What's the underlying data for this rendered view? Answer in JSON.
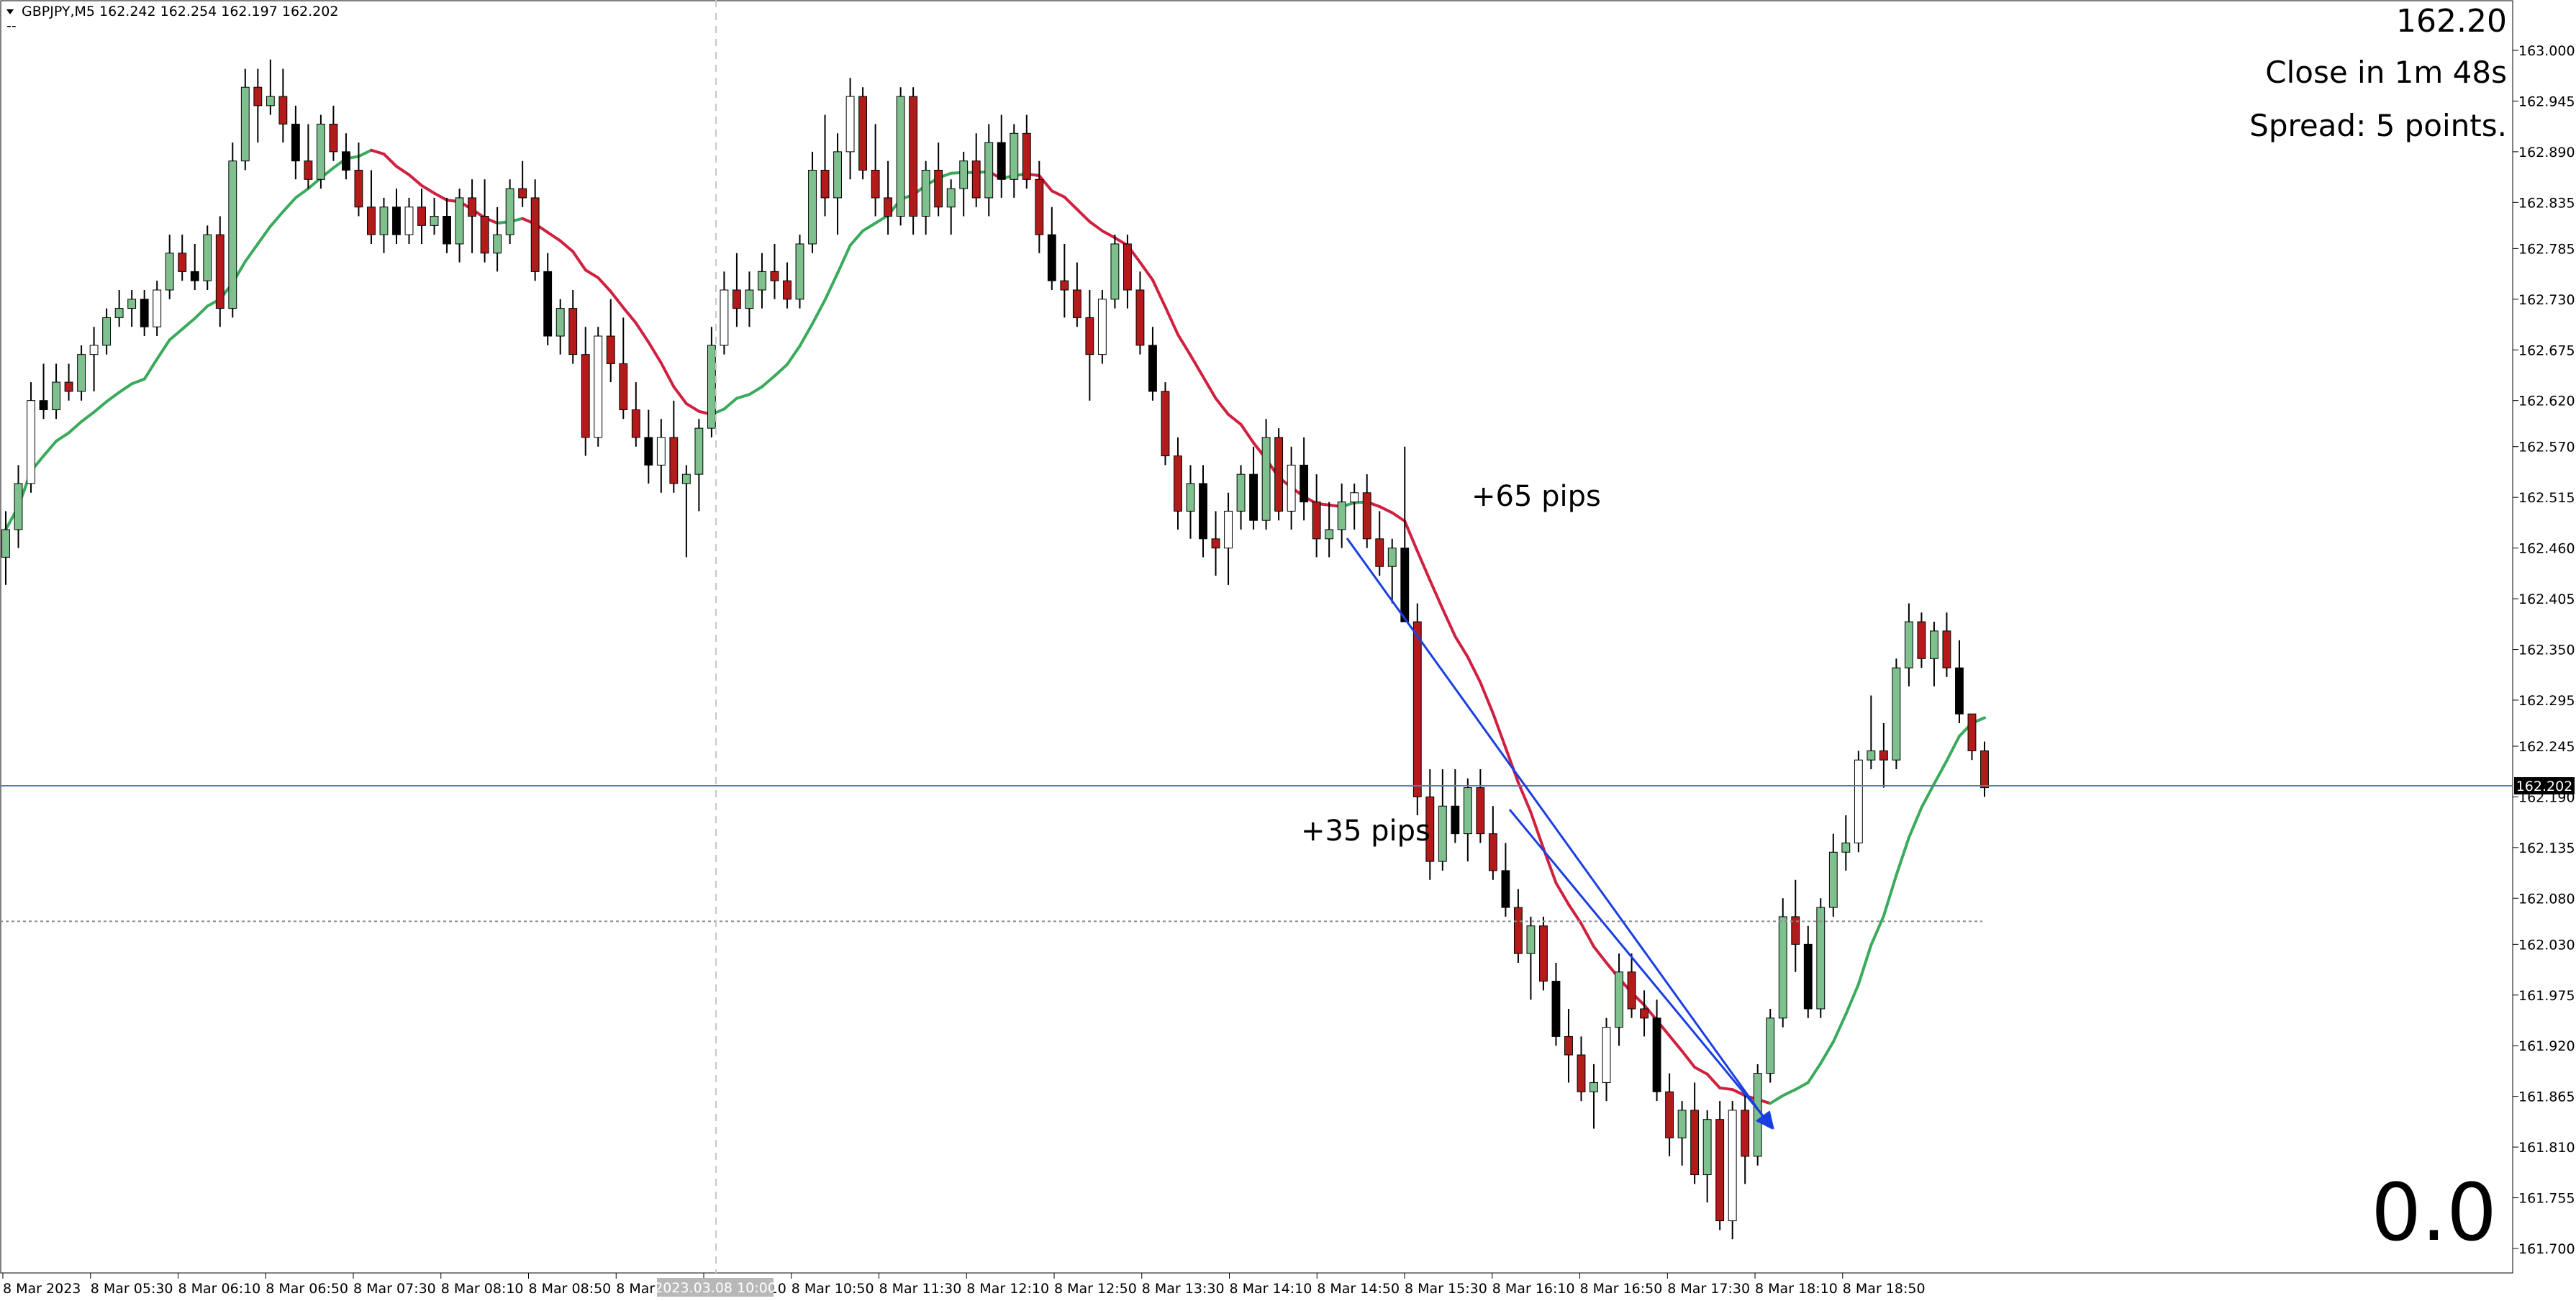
{
  "header": {
    "symbol_line": "GBPJPY,M5  162.242 162.254 162.197 162.202",
    "dashes": "--"
  },
  "overlay": {
    "price": "162.20",
    "close_in": "Close in 1m 48s",
    "spread": "Spread: 5 points.",
    "counter": "0.0",
    "counter_color": "#3cc23c"
  },
  "annotations": {
    "pips_65": "+65 pips",
    "pips_35": "+35 pips"
  },
  "current_price_label": "162.202",
  "cursor_time_label": "2023.03.08 10:00",
  "colors": {
    "bull_body": "#7fc08f",
    "bear_body": "#b31b1b",
    "neutral_body": "#000000",
    "wick": "#000000",
    "ma_up": "#3aaa5c",
    "ma_down": "#d0203f",
    "ma_turn": "#f7e64a",
    "arrow": "#1a3fe0",
    "bid_line": "#5a7ea0",
    "dotted_line": "#8a8a8a",
    "cursor_line": "#c8c8c8"
  },
  "chart_data": {
    "type": "candlestick",
    "symbol": "GBPJPY",
    "timeframe": "M5",
    "ylim": [
      161.675,
      163.02
    ],
    "y_ticks": [
      "163.000",
      "162.945",
      "162.890",
      "162.835",
      "162.785",
      "162.730",
      "162.675",
      "162.620",
      "162.570",
      "162.515",
      "162.460",
      "162.405",
      "162.350",
      "162.295",
      "162.245",
      "162.190",
      "162.135",
      "162.080",
      "162.030",
      "161.975",
      "161.920",
      "161.865",
      "161.810",
      "161.755",
      "161.700"
    ],
    "x_ticks": [
      "8 Mar 2023",
      "8 Mar 05:30",
      "8 Mar 06:10",
      "8 Mar 06:50",
      "8 Mar 07:30",
      "8 Mar 08:10",
      "8 Mar 08:50",
      "8 Mar 09:30",
      "8 Mar 10:10",
      "8 Mar 10:50",
      "8 Mar 11:30",
      "8 Mar 12:10",
      "8 Mar 12:50",
      "8 Mar 13:30",
      "8 Mar 14:10",
      "8 Mar 14:50",
      "8 Mar 15:30",
      "8 Mar 16:10",
      "8 Mar 16:50",
      "8 Mar 17:30",
      "8 Mar 18:10",
      "8 Mar 18:50"
    ],
    "current_price": 162.202,
    "dotted_level": 162.055,
    "candles_ohlc": [
      [
        162.45,
        162.5,
        162.42,
        162.48
      ],
      [
        162.48,
        162.55,
        162.46,
        162.53
      ],
      [
        162.53,
        162.64,
        162.52,
        162.62
      ],
      [
        162.62,
        162.66,
        162.6,
        162.61
      ],
      [
        162.61,
        162.66,
        162.6,
        162.64
      ],
      [
        162.64,
        162.66,
        162.62,
        162.63
      ],
      [
        162.63,
        162.68,
        162.62,
        162.67
      ],
      [
        162.67,
        162.7,
        162.63,
        162.68
      ],
      [
        162.68,
        162.72,
        162.67,
        162.71
      ],
      [
        162.71,
        162.74,
        162.7,
        162.72
      ],
      [
        162.72,
        162.74,
        162.7,
        162.73
      ],
      [
        162.73,
        162.74,
        162.69,
        162.7
      ],
      [
        162.7,
        162.75,
        162.69,
        162.74
      ],
      [
        162.74,
        162.8,
        162.73,
        162.78
      ],
      [
        162.78,
        162.8,
        162.75,
        162.76
      ],
      [
        162.76,
        162.79,
        162.74,
        162.75
      ],
      [
        162.75,
        162.81,
        162.74,
        162.8
      ],
      [
        162.8,
        162.82,
        162.7,
        162.72
      ],
      [
        162.72,
        162.9,
        162.71,
        162.88
      ],
      [
        162.88,
        162.98,
        162.87,
        162.96
      ],
      [
        162.96,
        162.98,
        162.9,
        162.94
      ],
      [
        162.94,
        162.99,
        162.93,
        162.95
      ],
      [
        162.95,
        162.98,
        162.9,
        162.92
      ],
      [
        162.92,
        162.94,
        162.86,
        162.88
      ],
      [
        162.88,
        162.92,
        162.85,
        162.86
      ],
      [
        162.86,
        162.93,
        162.85,
        162.92
      ],
      [
        162.92,
        162.94,
        162.88,
        162.89
      ],
      [
        162.89,
        162.91,
        162.86,
        162.87
      ],
      [
        162.87,
        162.9,
        162.82,
        162.83
      ],
      [
        162.83,
        162.87,
        162.79,
        162.8
      ],
      [
        162.8,
        162.84,
        162.78,
        162.83
      ],
      [
        162.83,
        162.85,
        162.79,
        162.8
      ],
      [
        162.8,
        162.84,
        162.79,
        162.83
      ],
      [
        162.83,
        162.85,
        162.79,
        162.81
      ],
      [
        162.81,
        162.84,
        162.8,
        162.82
      ],
      [
        162.82,
        162.84,
        162.78,
        162.79
      ],
      [
        162.79,
        162.85,
        162.77,
        162.84
      ],
      [
        162.84,
        162.86,
        162.78,
        162.82
      ],
      [
        162.82,
        162.86,
        162.77,
        162.78
      ],
      [
        162.78,
        162.83,
        162.76,
        162.8
      ],
      [
        162.8,
        162.86,
        162.79,
        162.85
      ],
      [
        162.85,
        162.88,
        162.83,
        162.84
      ],
      [
        162.84,
        162.86,
        162.75,
        162.76
      ],
      [
        162.76,
        162.78,
        162.68,
        162.69
      ],
      [
        162.69,
        162.73,
        162.67,
        162.72
      ],
      [
        162.72,
        162.74,
        162.66,
        162.67
      ],
      [
        162.67,
        162.7,
        162.56,
        162.58
      ],
      [
        162.58,
        162.7,
        162.57,
        162.69
      ],
      [
        162.69,
        162.73,
        162.64,
        162.66
      ],
      [
        162.66,
        162.71,
        162.6,
        162.61
      ],
      [
        162.61,
        162.64,
        162.57,
        162.58
      ],
      [
        162.58,
        162.61,
        162.53,
        162.55
      ],
      [
        162.55,
        162.6,
        162.52,
        162.58
      ],
      [
        162.58,
        162.62,
        162.52,
        162.53
      ],
      [
        162.53,
        162.55,
        162.45,
        162.54
      ],
      [
        162.54,
        162.6,
        162.5,
        162.59
      ],
      [
        162.59,
        162.7,
        162.58,
        162.68
      ],
      [
        162.68,
        162.76,
        162.67,
        162.74
      ],
      [
        162.74,
        162.78,
        162.7,
        162.72
      ],
      [
        162.72,
        162.76,
        162.7,
        162.74
      ],
      [
        162.74,
        162.78,
        162.72,
        162.76
      ],
      [
        162.76,
        162.79,
        162.73,
        162.75
      ],
      [
        162.75,
        162.77,
        162.72,
        162.73
      ],
      [
        162.73,
        162.8,
        162.72,
        162.79
      ],
      [
        162.79,
        162.89,
        162.78,
        162.87
      ],
      [
        162.87,
        162.93,
        162.82,
        162.84
      ],
      [
        162.84,
        162.91,
        162.8,
        162.89
      ],
      [
        162.89,
        162.97,
        162.86,
        162.95
      ],
      [
        162.95,
        162.96,
        162.86,
        162.87
      ],
      [
        162.87,
        162.92,
        162.82,
        162.84
      ],
      [
        162.84,
        162.88,
        162.8,
        162.82
      ],
      [
        162.82,
        162.96,
        162.81,
        162.95
      ],
      [
        162.95,
        162.96,
        162.8,
        162.82
      ],
      [
        162.82,
        162.88,
        162.8,
        162.87
      ],
      [
        162.87,
        162.9,
        162.82,
        162.83
      ],
      [
        162.83,
        162.86,
        162.8,
        162.85
      ],
      [
        162.85,
        162.89,
        162.82,
        162.88
      ],
      [
        162.88,
        162.91,
        162.83,
        162.84
      ],
      [
        162.84,
        162.92,
        162.82,
        162.9
      ],
      [
        162.9,
        162.93,
        162.84,
        162.86
      ],
      [
        162.86,
        162.92,
        162.84,
        162.91
      ],
      [
        162.91,
        162.93,
        162.85,
        162.86
      ],
      [
        162.86,
        162.88,
        162.78,
        162.8
      ],
      [
        162.8,
        162.83,
        162.74,
        162.75
      ],
      [
        162.75,
        162.79,
        162.71,
        162.74
      ],
      [
        162.74,
        162.77,
        162.7,
        162.71
      ],
      [
        162.71,
        162.74,
        162.62,
        162.67
      ],
      [
        162.67,
        162.74,
        162.66,
        162.73
      ],
      [
        162.73,
        162.8,
        162.72,
        162.79
      ],
      [
        162.79,
        162.8,
        162.72,
        162.74
      ],
      [
        162.74,
        162.76,
        162.67,
        162.68
      ],
      [
        162.68,
        162.7,
        162.62,
        162.63
      ],
      [
        162.63,
        162.64,
        162.55,
        162.56
      ],
      [
        162.56,
        162.58,
        162.48,
        162.5
      ],
      [
        162.5,
        162.55,
        162.47,
        162.53
      ],
      [
        162.53,
        162.55,
        162.45,
        162.47
      ],
      [
        162.47,
        162.5,
        162.43,
        162.46
      ],
      [
        162.46,
        162.52,
        162.42,
        162.5
      ],
      [
        162.5,
        162.55,
        162.48,
        162.54
      ],
      [
        162.54,
        162.57,
        162.48,
        162.49
      ],
      [
        162.49,
        162.6,
        162.48,
        162.58
      ],
      [
        162.58,
        162.59,
        162.49,
        162.5
      ],
      [
        162.5,
        162.57,
        162.48,
        162.55
      ],
      [
        162.55,
        162.58,
        162.49,
        162.51
      ],
      [
        162.51,
        162.54,
        162.45,
        162.47
      ],
      [
        162.47,
        162.51,
        162.45,
        162.48
      ],
      [
        162.48,
        162.53,
        162.46,
        162.51
      ],
      [
        162.51,
        162.53,
        162.48,
        162.52
      ],
      [
        162.52,
        162.54,
        162.46,
        162.47
      ],
      [
        162.47,
        162.5,
        162.43,
        162.44
      ],
      [
        162.44,
        162.47,
        162.4,
        162.46
      ],
      [
        162.46,
        162.57,
        162.44,
        162.38
      ],
      [
        162.38,
        162.4,
        162.17,
        162.19
      ],
      [
        162.19,
        162.22,
        162.1,
        162.12
      ],
      [
        162.12,
        162.22,
        162.11,
        162.18
      ],
      [
        162.18,
        162.22,
        162.14,
        162.15
      ],
      [
        162.15,
        162.21,
        162.12,
        162.2
      ],
      [
        162.2,
        162.22,
        162.14,
        162.15
      ],
      [
        162.15,
        162.18,
        162.1,
        162.11
      ],
      [
        162.11,
        162.14,
        162.06,
        162.07
      ],
      [
        162.07,
        162.09,
        162.01,
        162.02
      ],
      [
        162.02,
        162.06,
        161.97,
        162.05
      ],
      [
        162.05,
        162.06,
        161.98,
        161.99
      ],
      [
        161.99,
        162.01,
        161.92,
        161.93
      ],
      [
        161.93,
        161.96,
        161.88,
        161.91
      ],
      [
        161.91,
        161.93,
        161.86,
        161.87
      ],
      [
        161.87,
        161.9,
        161.83,
        161.88
      ],
      [
        161.88,
        161.95,
        161.86,
        161.94
      ],
      [
        161.94,
        162.02,
        161.92,
        162.0
      ],
      [
        162.0,
        162.02,
        161.95,
        161.96
      ],
      [
        161.96,
        161.98,
        161.93,
        161.95
      ],
      [
        161.95,
        161.97,
        161.86,
        161.87
      ],
      [
        161.87,
        161.89,
        161.8,
        161.82
      ],
      [
        161.82,
        161.86,
        161.79,
        161.85
      ],
      [
        161.85,
        161.88,
        161.77,
        161.78
      ],
      [
        161.78,
        161.85,
        161.75,
        161.84
      ],
      [
        161.84,
        161.86,
        161.72,
        161.73
      ],
      [
        161.73,
        161.86,
        161.71,
        161.85
      ],
      [
        161.85,
        161.87,
        161.77,
        161.8
      ],
      [
        161.8,
        161.9,
        161.79,
        161.89
      ],
      [
        161.89,
        161.96,
        161.88,
        161.95
      ],
      [
        161.95,
        162.08,
        161.94,
        162.06
      ],
      [
        162.06,
        162.1,
        162.0,
        162.03
      ],
      [
        162.03,
        162.05,
        161.95,
        161.96
      ],
      [
        161.96,
        162.08,
        161.95,
        162.07
      ],
      [
        162.07,
        162.15,
        162.06,
        162.13
      ],
      [
        162.13,
        162.17,
        162.11,
        162.14
      ],
      [
        162.14,
        162.24,
        162.13,
        162.23
      ],
      [
        162.23,
        162.3,
        162.22,
        162.24
      ],
      [
        162.24,
        162.27,
        162.2,
        162.23
      ],
      [
        162.23,
        162.34,
        162.22,
        162.33
      ],
      [
        162.33,
        162.4,
        162.31,
        162.38
      ],
      [
        162.38,
        162.39,
        162.33,
        162.34
      ],
      [
        162.34,
        162.38,
        162.31,
        162.37
      ],
      [
        162.37,
        162.39,
        162.32,
        162.33
      ],
      [
        162.33,
        162.36,
        162.27,
        162.28
      ],
      [
        162.28,
        162.25,
        162.23,
        162.24
      ],
      [
        162.24,
        162.25,
        162.19,
        162.2
      ]
    ]
  }
}
